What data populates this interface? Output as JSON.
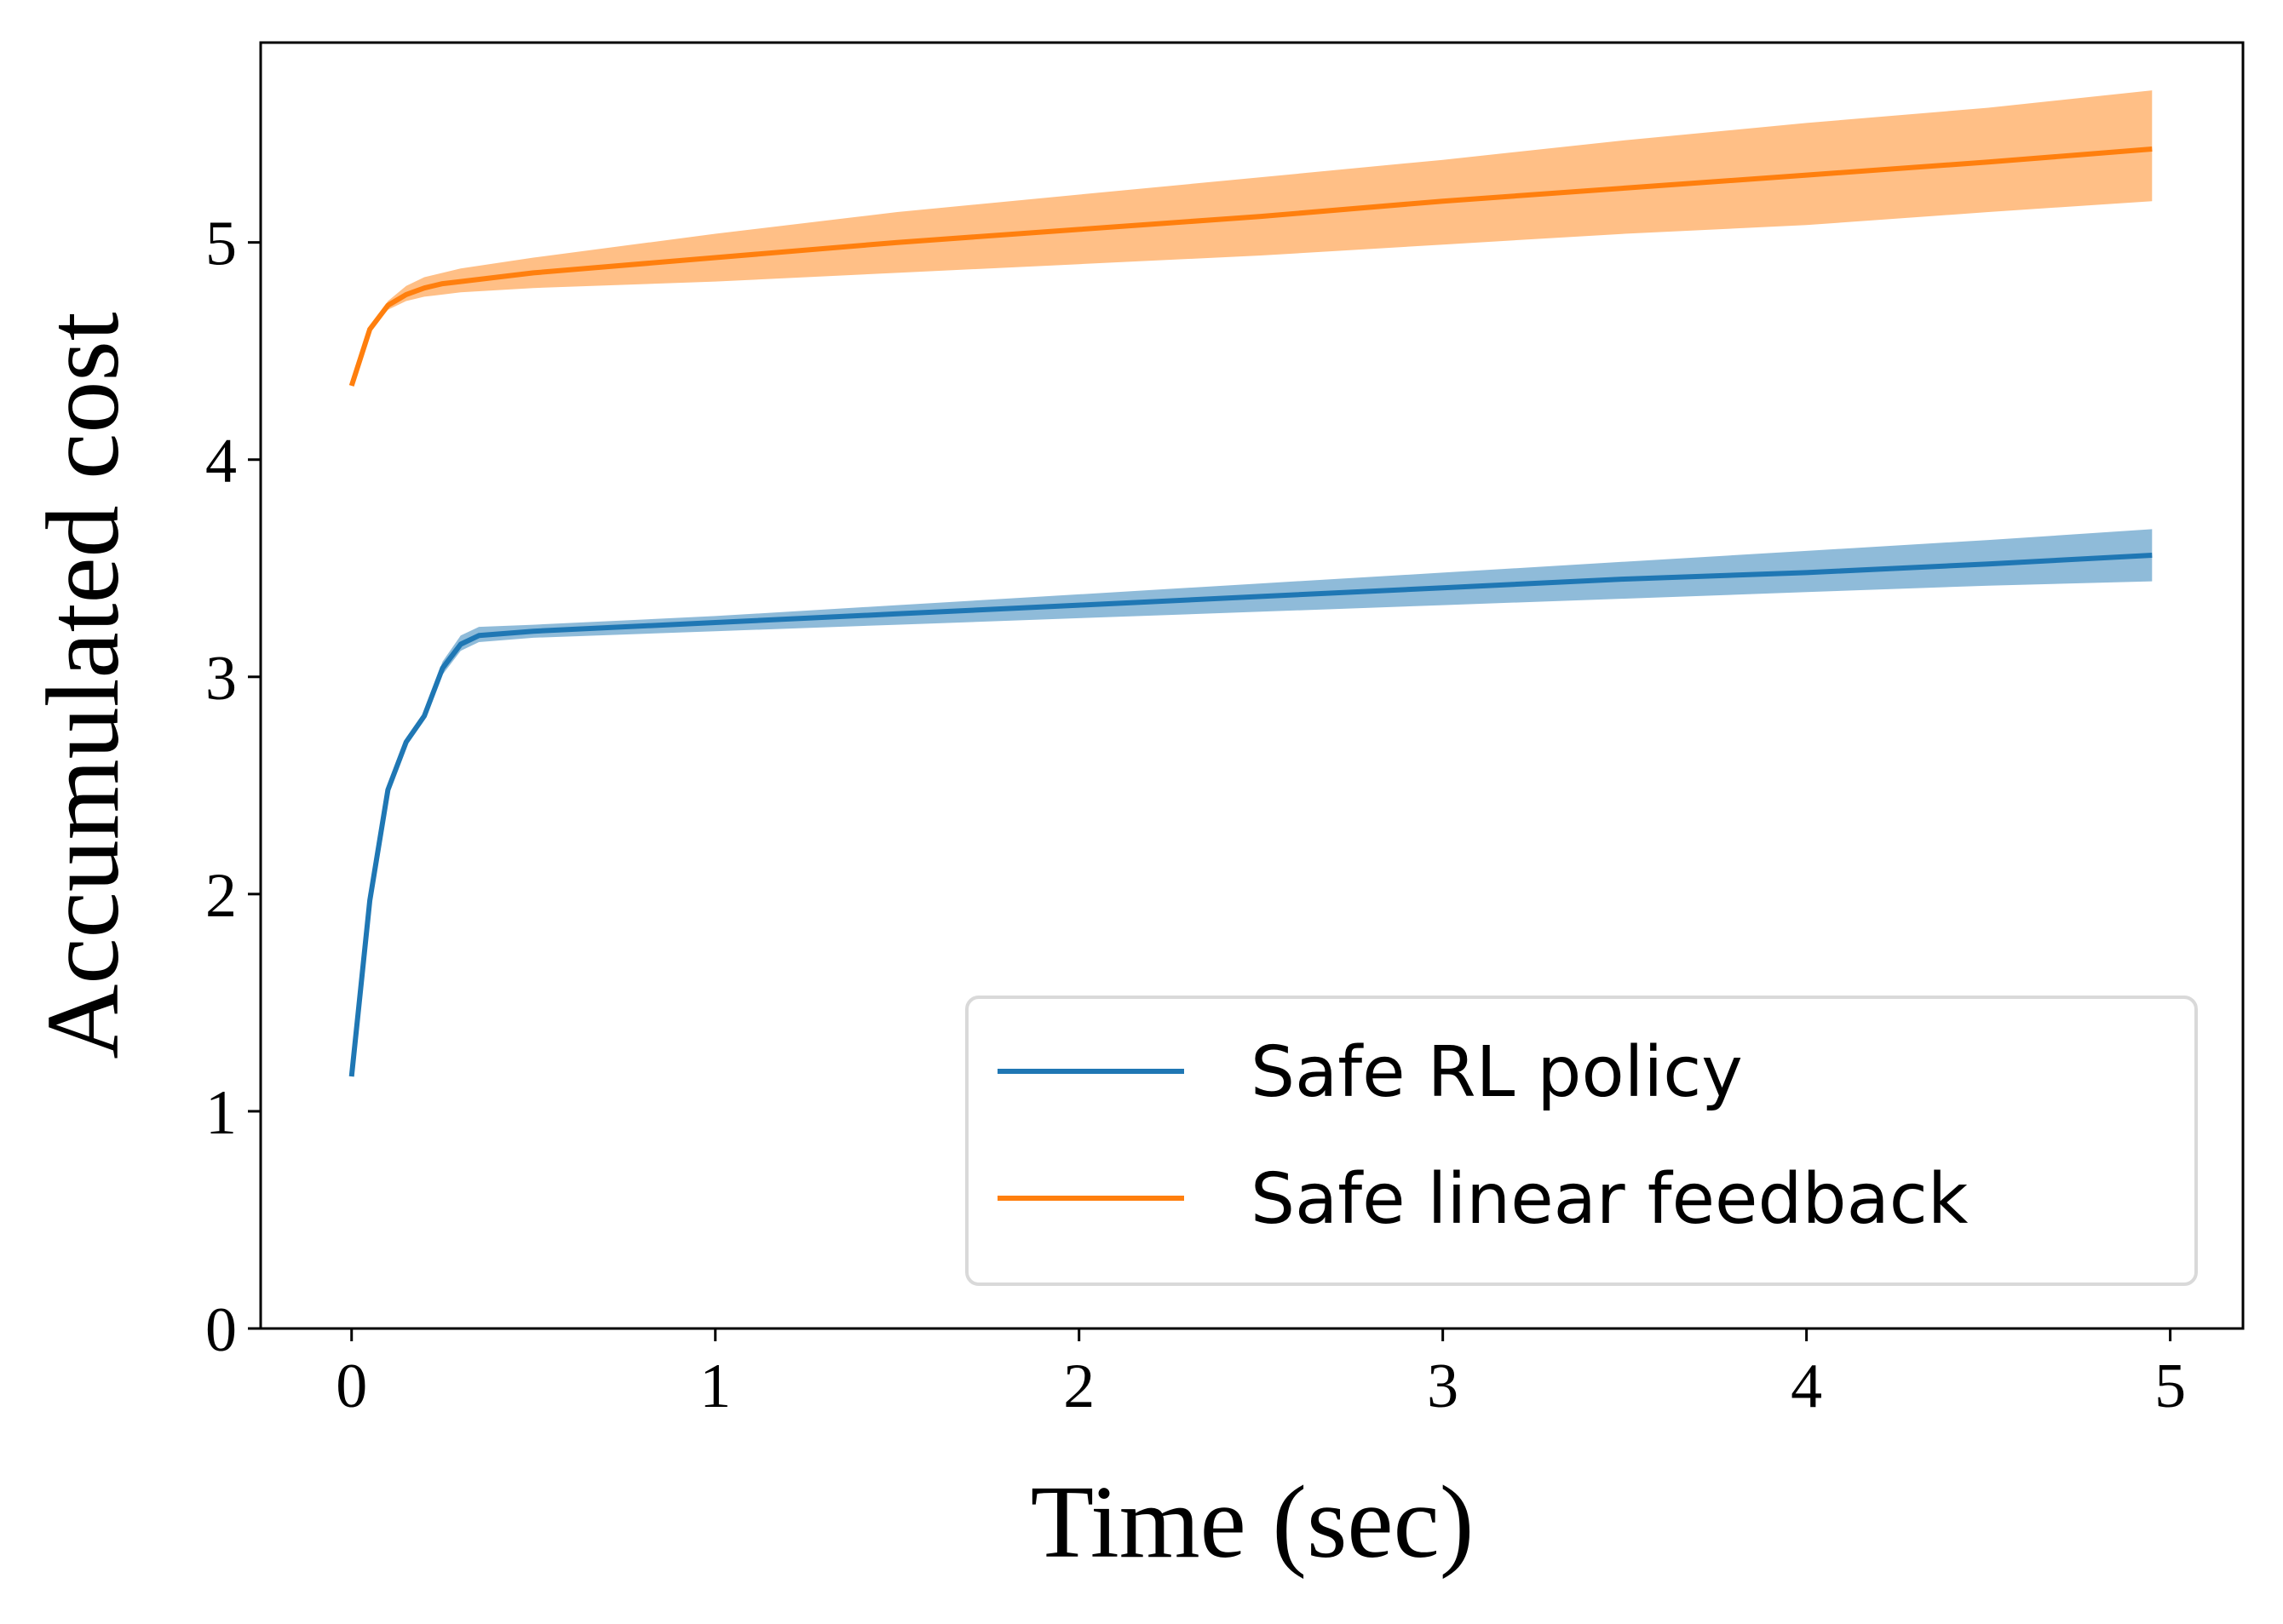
{
  "chart_data": {
    "type": "line",
    "title": "",
    "xlabel": "Time (sec)",
    "ylabel": "Accumulated cost",
    "xlim": [
      -0.25,
      5.2
    ],
    "ylim": [
      0,
      5.92
    ],
    "xticks": [
      0,
      1,
      2,
      3,
      4,
      5
    ],
    "yticks": [
      0,
      1,
      2,
      3,
      4,
      5
    ],
    "grid": false,
    "legend_position": "lower-right",
    "series": [
      {
        "name": "Safe RL policy",
        "color": "#1f77b4",
        "band_color": "#1f77b4",
        "x": [
          0,
          0.05,
          0.1,
          0.15,
          0.2,
          0.25,
          0.3,
          0.35,
          0.5,
          1.0,
          1.5,
          2.0,
          2.5,
          3.0,
          3.5,
          4.0,
          4.5,
          4.95
        ],
        "y": [
          1.16,
          1.97,
          2.48,
          2.7,
          2.82,
          3.04,
          3.15,
          3.19,
          3.21,
          3.25,
          3.29,
          3.33,
          3.37,
          3.41,
          3.45,
          3.48,
          3.52,
          3.56
        ],
        "lower": [
          1.16,
          1.95,
          2.46,
          2.68,
          2.8,
          3.01,
          3.12,
          3.16,
          3.18,
          3.21,
          3.24,
          3.27,
          3.3,
          3.33,
          3.36,
          3.39,
          3.42,
          3.44
        ],
        "upper": [
          1.16,
          1.99,
          2.5,
          2.72,
          2.84,
          3.07,
          3.19,
          3.23,
          3.24,
          3.28,
          3.33,
          3.38,
          3.43,
          3.48,
          3.53,
          3.58,
          3.63,
          3.68
        ]
      },
      {
        "name": "Safe linear feedback",
        "color": "#ff7f0e",
        "band_color": "#ff7f0e",
        "x": [
          0,
          0.05,
          0.1,
          0.15,
          0.2,
          0.25,
          0.3,
          0.5,
          1.0,
          1.5,
          2.0,
          2.5,
          3.0,
          3.5,
          4.0,
          4.5,
          4.95
        ],
        "y": [
          4.34,
          4.6,
          4.71,
          4.76,
          4.79,
          4.81,
          4.82,
          4.86,
          4.93,
          5.0,
          5.06,
          5.12,
          5.19,
          5.25,
          5.31,
          5.37,
          5.43
        ],
        "lower": [
          4.34,
          4.59,
          4.69,
          4.73,
          4.75,
          4.76,
          4.77,
          4.79,
          4.82,
          4.86,
          4.9,
          4.94,
          4.99,
          5.04,
          5.08,
          5.14,
          5.19
        ],
        "upper": [
          4.34,
          4.61,
          4.73,
          4.8,
          4.84,
          4.86,
          4.88,
          4.93,
          5.04,
          5.14,
          5.22,
          5.3,
          5.38,
          5.47,
          5.55,
          5.62,
          5.7
        ]
      }
    ]
  }
}
